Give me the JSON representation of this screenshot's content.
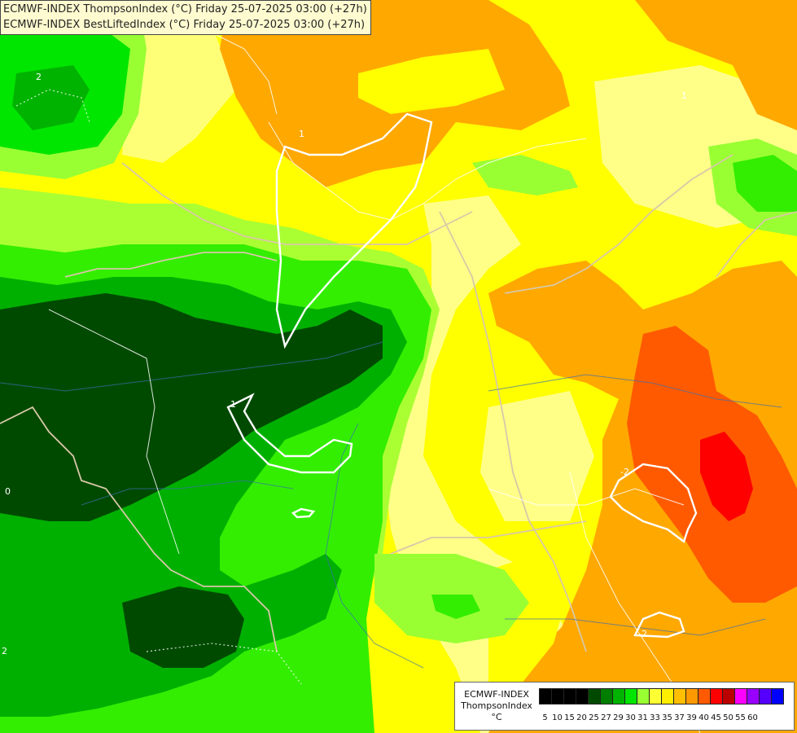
{
  "header": {
    "line1": "ECMWF-INDEX ThompsonIndex (°C) Friday 25-07-2025 03:00 (+27h)",
    "line2": "ECMWF-INDEX BestLiftedIndex (°C) Friday 25-07-2025 03:00 (+27h)"
  },
  "legend": {
    "model": "ECMWF-INDEX",
    "parameter": "ThompsonIndex",
    "unit": "°C",
    "ticks": [
      "5",
      "10",
      "15",
      "20",
      "25",
      "27",
      "29",
      "30",
      "31",
      "33",
      "35",
      "37",
      "39",
      "40",
      "45",
      "50",
      "55",
      "60"
    ],
    "colors": [
      "#000000",
      "#000000",
      "#000000",
      "#000000",
      "#004a00",
      "#007e00",
      "#00b300",
      "#00e600",
      "#99ff33",
      "#ffff33",
      "#ffee00",
      "#ffbf00",
      "#ff9900",
      "#ff5a00",
      "#ff0000",
      "#bb0000",
      "#ff00ff",
      "#9900ff",
      "#5500ff",
      "#0000ff"
    ]
  },
  "contour_labels": [
    "2",
    "1",
    "0",
    "-2",
    "-2",
    "2",
    "1",
    "1",
    "0",
    "-2"
  ]
}
